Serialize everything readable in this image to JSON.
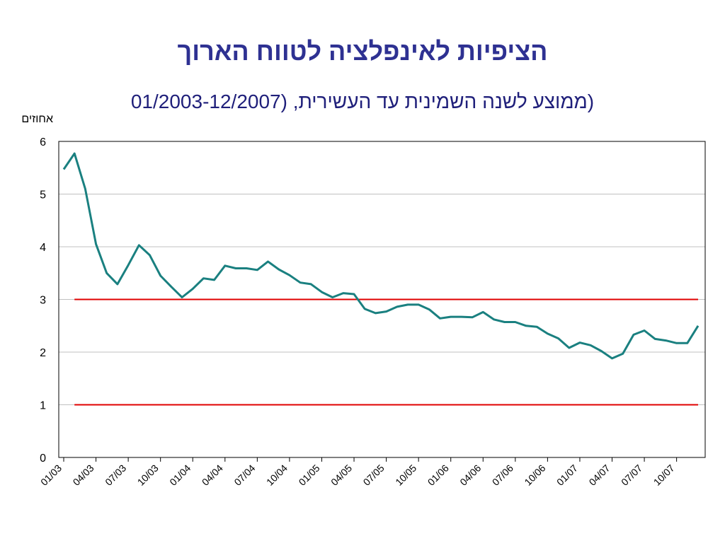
{
  "title": "הציפיות לאינפלציה לטווח הארוך",
  "subtitle_text": "(ממוצע לשנה השמינית עד העשירית,",
  "subtitle_range": "01/2003-12/2007)",
  "chart_data": {
    "type": "line",
    "title": "הציפיות לאינפלציה לטווח הארוך",
    "subtitle": "(ממוצע לשנה השמינית עד העשירית, 01/2003-12/2007)",
    "ylabel": "אחוזים",
    "xlabel": "",
    "ylim": [
      0,
      6
    ],
    "yticks": [
      "0",
      "1",
      "2",
      "3",
      "4",
      "5",
      "6"
    ],
    "xticks": [
      "01/03",
      "04/03",
      "07/03",
      "10/03",
      "01/04",
      "04/04",
      "07/04",
      "10/04",
      "01/05",
      "04/05",
      "07/05",
      "10/05",
      "01/06",
      "04/06",
      "07/06",
      "10/06",
      "01/07",
      "04/07",
      "07/07",
      "10/07"
    ],
    "grid": "horizontal",
    "colors": {
      "series": "#1a8080",
      "target": "#e00000",
      "grid": "#c0c0c0"
    },
    "series": [
      {
        "x": [
          "01/03",
          "02/03",
          "03/03",
          "04/03",
          "05/03",
          "06/03",
          "07/03",
          "08/03",
          "09/03",
          "10/03",
          "11/03",
          "12/03",
          "01/04",
          "02/04",
          "03/04",
          "04/04",
          "05/04",
          "06/04",
          "07/04",
          "08/04",
          "09/04",
          "10/04",
          "11/04",
          "12/04",
          "01/05",
          "02/05",
          "03/05",
          "04/05",
          "05/05",
          "06/05",
          "07/05",
          "08/05",
          "09/05",
          "10/05",
          "11/05",
          "12/05",
          "01/06",
          "02/06",
          "03/06",
          "04/06",
          "05/06",
          "06/06",
          "07/06",
          "08/06",
          "09/06",
          "10/06",
          "11/06",
          "12/06",
          "01/07",
          "02/07",
          "03/07",
          "04/07",
          "05/07",
          "06/07",
          "07/07",
          "08/07",
          "09/07",
          "10/07",
          "11/07",
          "12/07"
        ],
        "values": [
          5.47,
          5.77,
          5.1,
          4.05,
          3.5,
          3.29,
          3.65,
          4.03,
          3.84,
          3.45,
          3.24,
          3.04,
          3.2,
          3.4,
          3.37,
          3.64,
          3.59,
          3.59,
          3.56,
          3.72,
          3.57,
          3.46,
          3.32,
          3.29,
          3.14,
          3.04,
          3.12,
          3.1,
          2.82,
          2.74,
          2.77,
          2.86,
          2.9,
          2.9,
          2.81,
          2.64,
          2.67,
          2.67,
          2.66,
          2.76,
          2.62,
          2.57,
          2.57,
          2.5,
          2.48,
          2.35,
          2.26,
          2.08,
          2.18,
          2.13,
          2.02,
          1.88,
          1.97,
          2.33,
          2.41,
          2.25,
          2.22,
          2.17,
          2.17,
          2.5
        ]
      }
    ],
    "reference_lines": [
      {
        "value": 3,
        "from": "02/03",
        "to": "12/07"
      },
      {
        "value": 1,
        "from": "02/03",
        "to": "12/07"
      }
    ]
  }
}
